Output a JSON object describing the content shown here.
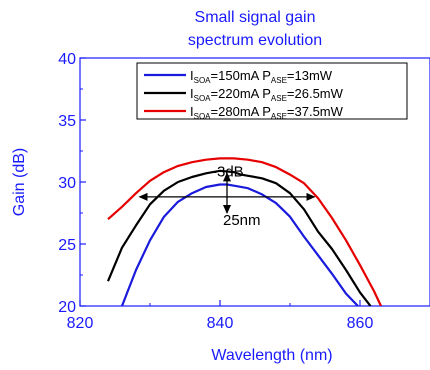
{
  "chart_data": {
    "type": "line",
    "title_lines": [
      "Small signal gain",
      "spectrum evolution"
    ],
    "xlabel": "Wavelength (nm)",
    "ylabel": "Gain (dB)",
    "xlim": [
      820,
      870
    ],
    "ylim": [
      20,
      40
    ],
    "xticks": [
      820,
      840,
      860
    ],
    "yticks": [
      20,
      25,
      30,
      35,
      40
    ],
    "legend_position": "top-right",
    "axis_color": "#1a1aff",
    "series": [
      {
        "legend": {
          "i": "I",
          "isub": "SOA",
          "ival": "=150mA ",
          "p": "P",
          "psub": "ASE",
          "pval": "=13mW"
        },
        "color": "#1a1adc",
        "x": [
          826.0,
          828.0,
          830.0,
          832.0,
          834.0,
          836.0,
          838.0,
          840.0,
          841.0,
          842.0,
          844.0,
          846.0,
          848.0,
          850.0,
          852.0,
          854.0,
          856.0,
          858.0,
          859.7
        ],
        "y": [
          20.0,
          22.9,
          25.3,
          27.2,
          28.4,
          29.1,
          29.6,
          29.8,
          29.8,
          29.7,
          29.5,
          29.0,
          28.3,
          27.2,
          25.6,
          24.1,
          22.6,
          21.0,
          20.0
        ]
      },
      {
        "legend": {
          "i": "I",
          "isub": "SOA",
          "ival": "=220mA ",
          "p": "P",
          "psub": "ASE",
          "pval": "=26.5mW"
        },
        "color": "#000000",
        "x": [
          824.0,
          826.0,
          828.0,
          830.0,
          832.0,
          834.0,
          836.0,
          838.0,
          840.0,
          842.0,
          843.0,
          844.0,
          846.0,
          848.0,
          850.0,
          852.0,
          854.0,
          856.0,
          858.0,
          860.0,
          861.5
        ],
        "y": [
          22.0,
          24.7,
          26.5,
          28.2,
          29.3,
          30.0,
          30.4,
          30.7,
          30.9,
          30.8,
          30.6,
          30.5,
          30.3,
          29.9,
          29.1,
          27.8,
          26.0,
          24.6,
          22.9,
          21.1,
          20.0
        ]
      },
      {
        "legend": {
          "i": "I",
          "isub": "SOA",
          "ival": "=280mA ",
          "p": "P",
          "psub": "ASE",
          "pval": "=37.5mW"
        },
        "color": "#e60000",
        "x": [
          824.0,
          826.0,
          828.0,
          830.0,
          832.0,
          834.0,
          836.0,
          838.0,
          840.0,
          842.0,
          844.0,
          846.0,
          848.0,
          850.0,
          852.0,
          854.0,
          856.0,
          858.0,
          860.0,
          862.0,
          863.0
        ],
        "y": [
          27.0,
          28.0,
          29.1,
          30.1,
          30.8,
          31.3,
          31.6,
          31.8,
          31.9,
          31.9,
          31.8,
          31.6,
          31.2,
          30.6,
          29.9,
          28.7,
          27.1,
          25.3,
          23.3,
          21.2,
          20.0
        ]
      }
    ],
    "annotations": {
      "db_label": "-3dB",
      "bw_label": "25nm",
      "arrow_y": 28.8,
      "arrow_x": [
        828.5,
        853.5
      ],
      "vert_x": 841.0,
      "vert_y": [
        30.7,
        27.5
      ]
    }
  }
}
